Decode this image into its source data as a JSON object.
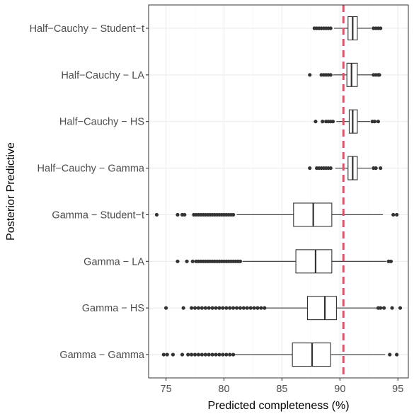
{
  "chart_data": {
    "type": "boxplot",
    "orientation": "horizontal",
    "xlabel": "Predicted completeness (%)",
    "ylabel": "Posterior Predictive",
    "xlim": [
      73.5,
      95.9
    ],
    "x_ticks": [
      75,
      80,
      85,
      90,
      95
    ],
    "grid": true,
    "reference_line": {
      "x": 90.3,
      "style": "dashed",
      "color": "#d9546e"
    },
    "colors": {
      "box_stroke": "#333333",
      "outlier": "#333333",
      "grid_major": "#ebebeb",
      "grid_minor": "#f5f5f5",
      "panel_border": "#333333"
    },
    "categories": [
      {
        "label": "Half−Cauchy − Student−t",
        "q1": 90.7,
        "median": 91.1,
        "q3": 91.5,
        "whisker_low": 89.5,
        "whisker_high": 92.7,
        "outliers": [
          87.8,
          88.0,
          88.2,
          88.4,
          88.6,
          88.8,
          89.0,
          89.2,
          92.9,
          93.1,
          93.3,
          93.5
        ]
      },
      {
        "label": "Half−Cauchy − LA",
        "q1": 90.6,
        "median": 91.0,
        "q3": 91.5,
        "whisker_low": 89.4,
        "whisker_high": 92.8,
        "outliers": [
          87.4,
          88.4,
          88.6,
          88.8,
          89.0,
          89.2,
          92.9,
          93.1,
          93.3,
          93.4
        ]
      },
      {
        "label": "Half−Cauchy − HS",
        "q1": 90.8,
        "median": 91.1,
        "q3": 91.5,
        "whisker_low": 89.7,
        "whisker_high": 92.6,
        "outliers": [
          87.9,
          88.5,
          88.8,
          89.0,
          89.2,
          89.4,
          92.8,
          93.0,
          93.3
        ]
      },
      {
        "label": "Half−Cauchy − Gamma",
        "q1": 90.7,
        "median": 91.1,
        "q3": 91.5,
        "whisker_low": 89.6,
        "whisker_high": 92.7,
        "outliers": [
          87.4,
          88.0,
          88.2,
          88.4,
          88.6,
          88.8,
          89.0,
          89.2,
          92.9,
          93.1,
          93.5
        ]
      },
      {
        "label": "Gamma − Student−t",
        "q1": 86.0,
        "median": 87.7,
        "q3": 89.3,
        "whisker_low": 81.1,
        "whisker_high": 93.7,
        "outliers": [
          74.2,
          76.0,
          76.4,
          76.6,
          77.4,
          77.6,
          77.8,
          78.0,
          78.2,
          78.4,
          78.6,
          78.8,
          79.0,
          79.2,
          79.4,
          79.6,
          79.8,
          80.0,
          80.2,
          80.4,
          80.6,
          80.8,
          94.6,
          94.9
        ]
      },
      {
        "label": "Gamma − LA",
        "q1": 86.2,
        "median": 87.9,
        "q3": 89.3,
        "whisker_low": 81.6,
        "whisker_high": 94.0,
        "outliers": [
          76.0,
          76.8,
          77.3,
          77.6,
          77.8,
          78.0,
          78.2,
          78.4,
          78.6,
          78.8,
          79.0,
          79.2,
          79.4,
          79.6,
          79.8,
          80.0,
          80.2,
          80.4,
          80.6,
          80.8,
          81.0,
          81.2,
          81.4,
          94.2,
          94.4
        ]
      },
      {
        "label": "Gamma − HS",
        "q1": 87.2,
        "median": 88.7,
        "q3": 89.7,
        "whisker_low": 83.6,
        "whisker_high": 93.2,
        "outliers": [
          75.0,
          76.5,
          77.2,
          77.5,
          77.8,
          78.1,
          78.4,
          78.7,
          79.0,
          79.3,
          79.6,
          79.9,
          80.2,
          80.5,
          80.8,
          81.1,
          81.4,
          81.7,
          82.0,
          82.3,
          82.6,
          82.9,
          83.2,
          83.5,
          93.3,
          93.5,
          93.8,
          94.5,
          95.2
        ]
      },
      {
        "label": "Gamma − Gamma",
        "q1": 85.9,
        "median": 87.6,
        "q3": 89.2,
        "whisker_low": 80.9,
        "whisker_high": 93.9,
        "outliers": [
          74.8,
          75.1,
          75.6,
          76.4,
          76.9,
          77.2,
          77.5,
          77.8,
          78.1,
          78.4,
          78.7,
          79.0,
          79.3,
          79.6,
          79.9,
          80.2,
          80.5,
          80.8,
          94.3,
          94.9
        ]
      }
    ]
  }
}
